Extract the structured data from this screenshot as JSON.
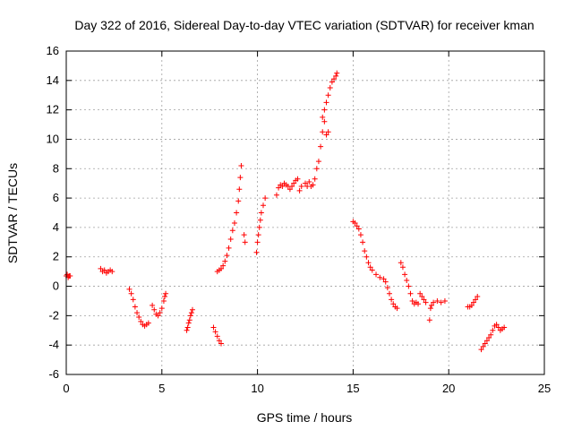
{
  "chart_data": {
    "type": "scatter",
    "title": "Day 322 of 2016, Sidereal Day-to-day VTEC variation (SDTVAR) for receiver kman",
    "xlabel": "GPS time / hours",
    "ylabel": "SDTVAR / TECUs",
    "xlim": [
      0,
      25
    ],
    "ylim": [
      -6,
      16
    ],
    "xticks": [
      "0",
      "5",
      "10",
      "15",
      "20",
      "25"
    ],
    "yticks": [
      "-6",
      "-4",
      "-2",
      "0",
      "2",
      "4",
      "6",
      "8",
      "10",
      "12",
      "14",
      "16"
    ],
    "grid": true,
    "marker": "plus",
    "color": "#ff0000",
    "series": [
      {
        "name": "SDTVAR",
        "x": [
          0.0,
          0.05,
          0.1,
          0.15,
          0.2,
          1.8,
          1.9,
          2.0,
          2.1,
          2.2,
          2.3,
          2.4,
          3.3,
          3.4,
          3.5,
          3.6,
          3.7,
          3.8,
          3.9,
          4.0,
          4.1,
          4.2,
          4.3,
          4.5,
          4.6,
          4.7,
          4.8,
          4.9,
          5.0,
          5.1,
          5.15,
          5.2,
          6.3,
          6.35,
          6.4,
          6.45,
          6.5,
          6.55,
          6.6,
          7.7,
          7.8,
          7.9,
          8.0,
          8.1,
          7.9,
          8.0,
          8.1,
          8.2,
          8.3,
          8.4,
          8.5,
          8.6,
          8.7,
          8.8,
          8.9,
          9.0,
          9.05,
          9.1,
          9.15,
          9.3,
          9.35,
          9.95,
          10.0,
          10.05,
          10.1,
          10.15,
          10.2,
          10.3,
          10.4,
          11.0,
          11.1,
          11.2,
          11.3,
          11.4,
          11.5,
          11.6,
          11.7,
          11.8,
          11.9,
          12.0,
          12.1,
          12.2,
          12.3,
          12.5,
          12.6,
          12.7,
          12.8,
          12.9,
          13.0,
          13.1,
          13.2,
          13.3,
          13.4,
          13.5,
          13.6,
          13.7,
          13.4,
          13.5,
          13.6,
          13.7,
          13.8,
          13.9,
          14.0,
          14.1,
          14.15,
          15.0,
          15.1,
          15.2,
          15.3,
          15.4,
          15.5,
          15.6,
          15.7,
          15.8,
          15.9,
          16.0,
          16.2,
          16.4,
          16.6,
          16.7,
          16.8,
          16.9,
          17.0,
          17.1,
          17.2,
          17.3,
          17.5,
          17.6,
          17.7,
          17.8,
          17.9,
          18.0,
          18.1,
          18.2,
          18.3,
          18.4,
          18.5,
          18.6,
          18.7,
          18.8,
          19.0,
          19.05,
          19.1,
          19.2,
          19.4,
          19.6,
          19.8,
          21.0,
          21.1,
          21.2,
          21.3,
          21.4,
          21.5,
          21.7,
          21.8,
          21.9,
          22.0,
          22.1,
          22.2,
          22.3,
          22.4,
          22.5,
          22.6,
          22.7,
          22.8,
          22.9
        ],
        "y": [
          0.7,
          0.8,
          0.6,
          0.7,
          0.7,
          1.2,
          1.0,
          1.1,
          0.9,
          1.0,
          1.1,
          1.0,
          -0.2,
          -0.5,
          -0.9,
          -1.4,
          -1.8,
          -2.1,
          -2.4,
          -2.6,
          -2.7,
          -2.6,
          -2.5,
          -1.3,
          -1.6,
          -1.9,
          -2.0,
          -1.8,
          -1.5,
          -1.0,
          -0.7,
          -0.5,
          -3.0,
          -2.8,
          -2.5,
          -2.3,
          -2.0,
          -1.8,
          -1.6,
          -2.8,
          -3.1,
          -3.4,
          -3.7,
          -3.9,
          1.0,
          1.1,
          1.2,
          1.4,
          1.7,
          2.1,
          2.6,
          3.2,
          3.8,
          4.3,
          5.0,
          5.8,
          6.6,
          7.4,
          8.2,
          3.5,
          3.0,
          2.3,
          3.0,
          3.5,
          4.0,
          4.5,
          5.0,
          5.5,
          6.0,
          6.2,
          6.7,
          6.9,
          6.8,
          7.0,
          6.9,
          6.8,
          6.6,
          6.8,
          7.0,
          7.2,
          7.3,
          6.5,
          6.8,
          7.0,
          6.8,
          7.1,
          6.8,
          6.9,
          7.3,
          8.0,
          8.5,
          9.5,
          10.5,
          11.2,
          10.3,
          10.5,
          11.5,
          12.0,
          12.5,
          13.0,
          13.5,
          13.9,
          14.1,
          14.3,
          14.5,
          4.4,
          4.3,
          4.1,
          3.9,
          3.5,
          3.0,
          2.4,
          2.0,
          1.6,
          1.3,
          1.1,
          0.8,
          0.6,
          0.5,
          0.3,
          -0.1,
          -0.5,
          -0.9,
          -1.2,
          -1.4,
          -1.5,
          1.6,
          1.3,
          0.8,
          0.4,
          0.0,
          -0.5,
          -1.0,
          -1.2,
          -1.1,
          -1.2,
          -0.5,
          -0.7,
          -0.9,
          -1.1,
          -2.3,
          -1.5,
          -1.3,
          -1.1,
          -1.0,
          -1.1,
          -1.0,
          -1.4,
          -1.4,
          -1.3,
          -1.1,
          -0.9,
          -0.7,
          -4.3,
          -4.1,
          -3.9,
          -3.7,
          -3.5,
          -3.3,
          -3.0,
          -2.7,
          -2.6,
          -2.8,
          -3.0,
          -2.9,
          -2.8
        ]
      }
    ]
  }
}
